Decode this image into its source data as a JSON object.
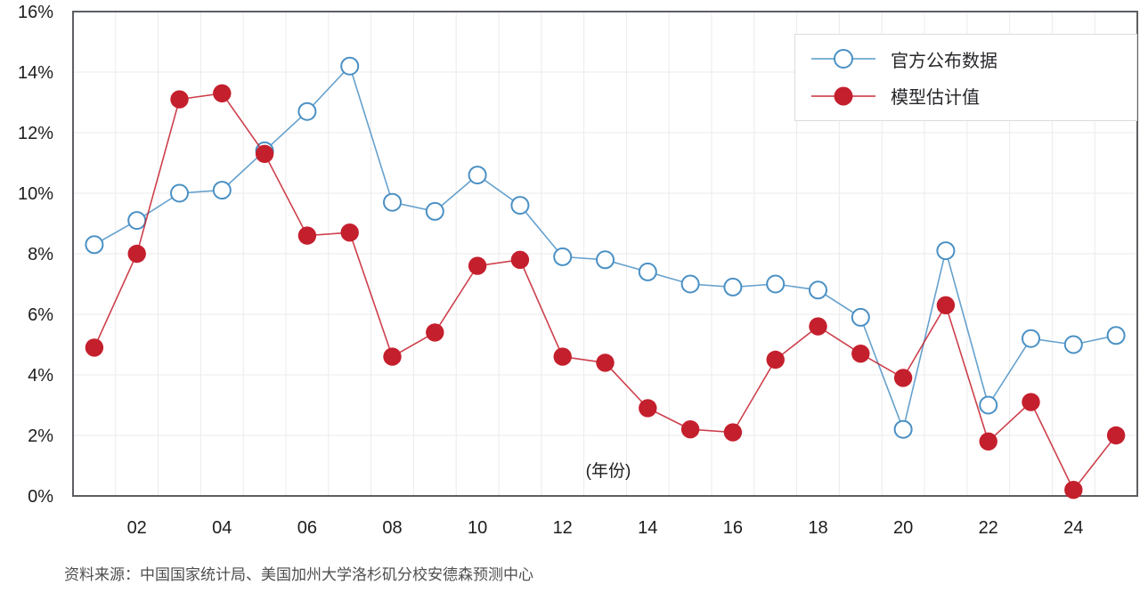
{
  "chart_data": {
    "type": "line",
    "title": "",
    "x_axis_label": "(年份)",
    "x_years": [
      2001,
      2002,
      2003,
      2004,
      2005,
      2006,
      2007,
      2008,
      2009,
      2010,
      2011,
      2012,
      2013,
      2014,
      2015,
      2016,
      2017,
      2018,
      2019,
      2020,
      2021,
      2022,
      2023,
      2024,
      2025
    ],
    "x_tick_labels": [
      "02",
      "04",
      "06",
      "08",
      "10",
      "12",
      "14",
      "16",
      "18",
      "20",
      "22",
      "24"
    ],
    "y_tick_labels": [
      "0%",
      "2%",
      "4%",
      "6%",
      "8%",
      "10%",
      "12%",
      "14%",
      "16%"
    ],
    "ylim": [
      0,
      16
    ],
    "y_tick_step": 2,
    "grid": true,
    "legend_position": "top-right",
    "series": [
      {
        "name": "官方公布数据",
        "marker": "open-circle",
        "color": "#4a90c4",
        "values": [
          8.3,
          9.1,
          10.0,
          10.1,
          11.4,
          12.7,
          14.2,
          9.7,
          9.4,
          10.6,
          9.6,
          7.9,
          7.8,
          7.4,
          7.0,
          6.9,
          7.0,
          6.8,
          5.9,
          2.2,
          8.1,
          3.0,
          5.2,
          5.0,
          5.3
        ]
      },
      {
        "name": "模型估计值",
        "marker": "filled-circle",
        "color": "#c41f2d",
        "values": [
          4.9,
          8.0,
          13.1,
          13.3,
          11.3,
          8.6,
          8.7,
          4.6,
          5.4,
          7.6,
          7.8,
          4.6,
          4.4,
          2.9,
          2.2,
          2.1,
          4.5,
          5.6,
          4.7,
          3.9,
          6.3,
          1.8,
          3.1,
          0.2,
          2.0
        ]
      }
    ],
    "style": {
      "background": "#ffffff",
      "grid_color": "#ebebeb",
      "axis_border_color": "#5c5e62",
      "tick_label_color": "#1d1d1f"
    }
  },
  "footer": {
    "source_note": "资料来源：中国国家统计局、美国加州大学洛杉矶分校安德森预测中心"
  }
}
